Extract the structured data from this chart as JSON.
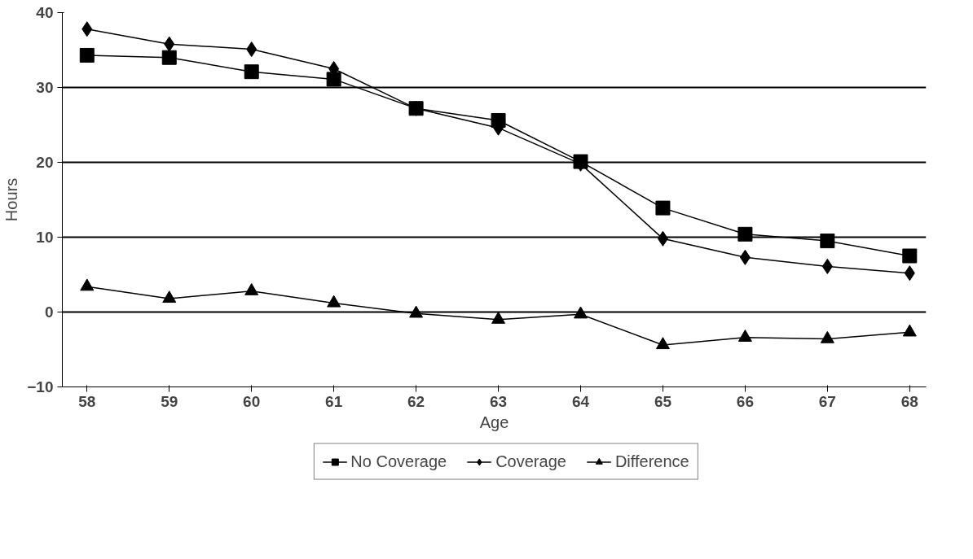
{
  "chart_data": {
    "type": "line",
    "xlabel": "Age",
    "ylabel": "Hours",
    "x": [
      58,
      59,
      60,
      61,
      62,
      63,
      64,
      65,
      66,
      67,
      68
    ],
    "series": [
      {
        "name": "No Coverage",
        "color": "#000000",
        "marker": "square",
        "values": [
          34.3,
          34.0,
          32.1,
          31.1,
          27.2,
          25.6,
          20.1,
          13.9,
          10.4,
          9.5,
          7.5
        ]
      },
      {
        "name": "Coverage",
        "color": "#000000",
        "marker": "diamond",
        "values": [
          37.8,
          35.8,
          35.1,
          32.5,
          27.2,
          24.6,
          19.8,
          9.8,
          7.3,
          6.1,
          5.2
        ]
      },
      {
        "name": "Difference",
        "color": "#000000",
        "marker": "triangle",
        "values": [
          3.4,
          1.8,
          2.8,
          1.2,
          -0.2,
          -1.0,
          -0.3,
          -4.4,
          -3.4,
          -3.6,
          -2.7
        ]
      }
    ],
    "xlim": [
      57.7,
      68.2
    ],
    "xticks": [
      58,
      59,
      60,
      61,
      62,
      63,
      64,
      65,
      66,
      67,
      68
    ],
    "ylim": [
      -10,
      40
    ],
    "yticks": [
      -10,
      0,
      10,
      20,
      30,
      40
    ],
    "grid": "y",
    "legend": "bottom",
    "line_style": "solid"
  }
}
